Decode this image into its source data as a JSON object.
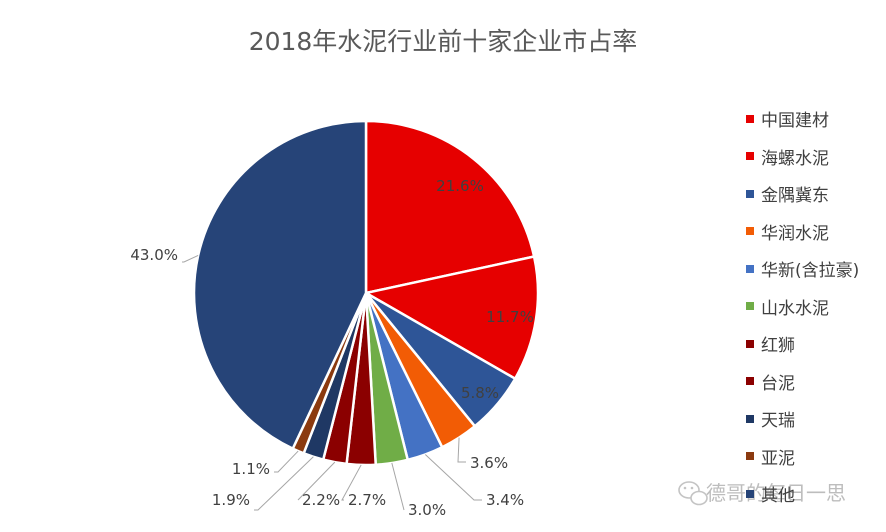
{
  "chart_data": {
    "type": "pie",
    "title": "2018年水泥行业前十家企业市占率",
    "categories": [
      "中国建材",
      "海螺水泥",
      "金隅冀东",
      "华润水泥",
      "华新(含拉豪)",
      "山水水泥",
      "红狮",
      "台泥",
      "天瑞",
      "亚泥",
      "其他"
    ],
    "values": [
      21.6,
      11.7,
      5.8,
      3.6,
      3.4,
      3.0,
      2.7,
      2.2,
      1.9,
      1.1,
      43.0
    ],
    "data_labels": [
      "21.6%",
      "11.7%",
      "5.8%",
      "3.6%",
      "3.4%",
      "3.0%",
      "2.7%",
      "2.2%",
      "1.9%",
      "1.1%",
      "43.0%"
    ],
    "colors": [
      "#E60000",
      "#E60000",
      "#2E5597",
      "#F25C05",
      "#4472C4",
      "#70AD47",
      "#8B0000",
      "#8B0000",
      "#1F3864",
      "#8B3A0F",
      "#264478"
    ],
    "legend_position": "right"
  },
  "watermark": {
    "icon": "wechat-icon",
    "text": "德哥的每日一思"
  }
}
